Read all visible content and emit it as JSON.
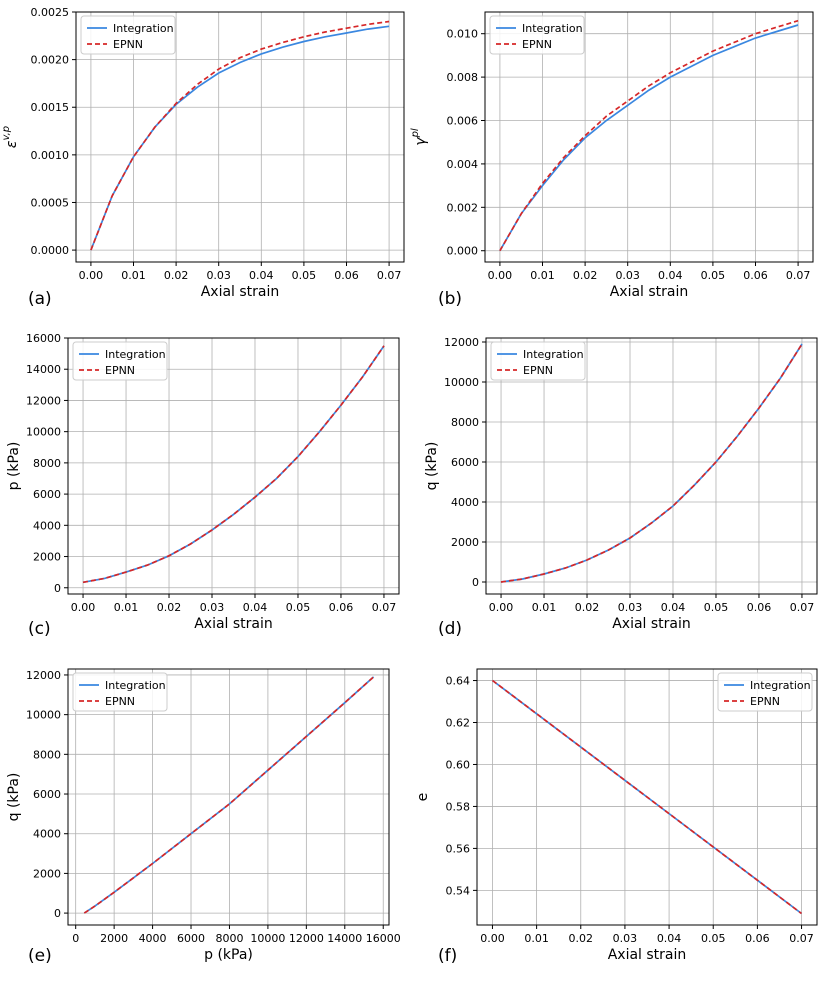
{
  "chart_data": [
    {
      "type": "line",
      "panel_label": "(a)",
      "xlabel": "Axial strain",
      "ylabel_symbol": "ε",
      "ylabel_sup": "v,p",
      "xlim": [
        -0.0035,
        0.0735
      ],
      "ylim": [
        -0.000125,
        0.0025
      ],
      "xticks": [
        0,
        0.01,
        0.02,
        0.03,
        0.04,
        0.05,
        0.06,
        0.07
      ],
      "xtick_labels": [
        "0.00",
        "0.01",
        "0.02",
        "0.03",
        "0.04",
        "0.05",
        "0.06",
        "0.07"
      ],
      "yticks": [
        0,
        0.0005,
        0.001,
        0.0015,
        0.002,
        0.0025
      ],
      "ytick_labels": [
        "0.0000",
        "0.0005",
        "0.0010",
        "0.0015",
        "0.0020",
        "0.0025"
      ],
      "legend_loc": "upper-left",
      "series": [
        {
          "name": "Integration",
          "color": "#3a87e0",
          "style": "solid",
          "x": [
            0,
            0.005,
            0.01,
            0.015,
            0.02,
            0.025,
            0.03,
            0.035,
            0.04,
            0.045,
            0.05,
            0.055,
            0.06,
            0.065,
            0.07
          ],
          "y": [
            0,
            0.00057,
            0.00098,
            0.00129,
            0.00153,
            0.00171,
            0.00186,
            0.00197,
            0.00206,
            0.00213,
            0.00219,
            0.00224,
            0.00228,
            0.00232,
            0.00235
          ]
        },
        {
          "name": "EPNN",
          "color": "#d62728",
          "style": "dashed",
          "x": [
            0,
            0.005,
            0.01,
            0.015,
            0.02,
            0.025,
            0.03,
            0.035,
            0.04,
            0.045,
            0.05,
            0.055,
            0.06,
            0.065,
            0.07
          ],
          "y": [
            0,
            0.00057,
            0.00098,
            0.00129,
            0.00154,
            0.00174,
            0.0019,
            0.00202,
            0.00211,
            0.00218,
            0.00224,
            0.00229,
            0.00233,
            0.00237,
            0.0024
          ]
        }
      ]
    },
    {
      "type": "line",
      "panel_label": "(b)",
      "xlabel": "Axial strain",
      "ylabel_symbol": "γ",
      "ylabel_sup": "pl",
      "xlim": [
        -0.0035,
        0.0735
      ],
      "ylim": [
        -0.00052,
        0.011
      ],
      "xticks": [
        0,
        0.01,
        0.02,
        0.03,
        0.04,
        0.05,
        0.06,
        0.07
      ],
      "xtick_labels": [
        "0.00",
        "0.01",
        "0.02",
        "0.03",
        "0.04",
        "0.05",
        "0.06",
        "0.07"
      ],
      "yticks": [
        0,
        0.002,
        0.004,
        0.006,
        0.008,
        0.01
      ],
      "ytick_labels": [
        "0.000",
        "0.002",
        "0.004",
        "0.006",
        "0.008",
        "0.010"
      ],
      "legend_loc": "upper-left",
      "series": [
        {
          "name": "Integration",
          "color": "#3a87e0",
          "style": "solid",
          "x": [
            0,
            0.005,
            0.01,
            0.015,
            0.02,
            0.025,
            0.03,
            0.035,
            0.04,
            0.045,
            0.05,
            0.055,
            0.06,
            0.065,
            0.07
          ],
          "y": [
            0,
            0.0017,
            0.003,
            0.0042,
            0.0052,
            0.006,
            0.0067,
            0.0074,
            0.008,
            0.0085,
            0.009,
            0.0094,
            0.0098,
            0.0101,
            0.0104
          ]
        },
        {
          "name": "EPNN",
          "color": "#d62728",
          "style": "dashed",
          "x": [
            0,
            0.005,
            0.01,
            0.015,
            0.02,
            0.025,
            0.03,
            0.035,
            0.04,
            0.045,
            0.05,
            0.055,
            0.06,
            0.065,
            0.07
          ],
          "y": [
            0,
            0.0017,
            0.0031,
            0.0043,
            0.0053,
            0.0062,
            0.0069,
            0.0076,
            0.0082,
            0.0087,
            0.0092,
            0.0096,
            0.01,
            0.0103,
            0.0106
          ]
        }
      ]
    },
    {
      "type": "line",
      "panel_label": "(c)",
      "xlabel": "Axial strain",
      "ylabel": "p (kPa)",
      "xlim": [
        -0.0035,
        0.0735
      ],
      "ylim": [
        -400,
        16000
      ],
      "xticks": [
        0,
        0.01,
        0.02,
        0.03,
        0.04,
        0.05,
        0.06,
        0.07
      ],
      "xtick_labels": [
        "0.00",
        "0.01",
        "0.02",
        "0.03",
        "0.04",
        "0.05",
        "0.06",
        "0.07"
      ],
      "yticks": [
        0,
        2000,
        4000,
        6000,
        8000,
        10000,
        12000,
        14000,
        16000
      ],
      "ytick_labels": [
        "0",
        "2000",
        "4000",
        "6000",
        "8000",
        "10000",
        "12000",
        "14000",
        "16000"
      ],
      "legend_loc": "upper-left",
      "series": [
        {
          "name": "Integration",
          "color": "#3a87e0",
          "style": "solid",
          "x": [
            0,
            0.005,
            0.01,
            0.015,
            0.02,
            0.025,
            0.03,
            0.035,
            0.04,
            0.045,
            0.05,
            0.055,
            0.06,
            0.065,
            0.07
          ],
          "y": [
            350,
            600,
            1000,
            1450,
            2050,
            2800,
            3700,
            4700,
            5800,
            7000,
            8400,
            10000,
            11700,
            13500,
            15500
          ]
        },
        {
          "name": "EPNN",
          "color": "#d62728",
          "style": "dashed",
          "x": [
            0,
            0.005,
            0.01,
            0.015,
            0.02,
            0.025,
            0.03,
            0.035,
            0.04,
            0.045,
            0.05,
            0.055,
            0.06,
            0.065,
            0.07
          ],
          "y": [
            350,
            600,
            1000,
            1450,
            2050,
            2800,
            3700,
            4700,
            5800,
            7000,
            8400,
            10000,
            11700,
            13500,
            15500
          ]
        }
      ]
    },
    {
      "type": "line",
      "panel_label": "(d)",
      "xlabel": "Axial strain",
      "ylabel": "q (kPa)",
      "xlim": [
        -0.0035,
        0.0735
      ],
      "ylim": [
        -600,
        12200
      ],
      "xticks": [
        0,
        0.01,
        0.02,
        0.03,
        0.04,
        0.05,
        0.06,
        0.07
      ],
      "xtick_labels": [
        "0.00",
        "0.01",
        "0.02",
        "0.03",
        "0.04",
        "0.05",
        "0.06",
        "0.07"
      ],
      "yticks": [
        0,
        2000,
        4000,
        6000,
        8000,
        10000,
        12000
      ],
      "ytick_labels": [
        "0",
        "2000",
        "4000",
        "6000",
        "8000",
        "10000",
        "12000"
      ],
      "legend_loc": "upper-left",
      "series": [
        {
          "name": "Integration",
          "color": "#3a87e0",
          "style": "solid",
          "x": [
            0,
            0.005,
            0.01,
            0.015,
            0.02,
            0.025,
            0.03,
            0.035,
            0.04,
            0.045,
            0.05,
            0.055,
            0.06,
            0.065,
            0.07
          ],
          "y": [
            0,
            150,
            400,
            700,
            1100,
            1600,
            2200,
            2950,
            3800,
            4850,
            6000,
            7300,
            8700,
            10200,
            11900
          ]
        },
        {
          "name": "EPNN",
          "color": "#d62728",
          "style": "dashed",
          "x": [
            0,
            0.005,
            0.01,
            0.015,
            0.02,
            0.025,
            0.03,
            0.035,
            0.04,
            0.045,
            0.05,
            0.055,
            0.06,
            0.065,
            0.07
          ],
          "y": [
            0,
            150,
            400,
            700,
            1100,
            1600,
            2200,
            2950,
            3800,
            4850,
            6000,
            7300,
            8700,
            10200,
            11900
          ]
        }
      ]
    },
    {
      "type": "line",
      "panel_label": "(e)",
      "xlabel": "p (kPa)",
      "ylabel": "q (kPa)",
      "xlim": [
        -400,
        16300
      ],
      "ylim": [
        -600,
        12300
      ],
      "xticks": [
        0,
        2000,
        4000,
        6000,
        8000,
        10000,
        12000,
        14000,
        16000
      ],
      "xtick_labels": [
        "0",
        "2000",
        "4000",
        "6000",
        "8000",
        "10000",
        "12000",
        "14000",
        "16000"
      ],
      "yticks": [
        0,
        2000,
        4000,
        6000,
        8000,
        10000,
        12000
      ],
      "ytick_labels": [
        "0",
        "2000",
        "4000",
        "6000",
        "8000",
        "10000",
        "12000"
      ],
      "legend_loc": "upper-left",
      "series": [
        {
          "name": "Integration",
          "color": "#3a87e0",
          "style": "solid",
          "x": [
            450,
            1000,
            2000,
            4000,
            6000,
            8000,
            10000,
            12000,
            14000,
            15500
          ],
          "y": [
            0,
            350,
            1050,
            2500,
            4000,
            5500,
            7200,
            8900,
            10600,
            11900
          ]
        },
        {
          "name": "EPNN",
          "color": "#d62728",
          "style": "dashed",
          "x": [
            450,
            1000,
            2000,
            4000,
            6000,
            8000,
            10000,
            12000,
            14000,
            15500
          ],
          "y": [
            0,
            350,
            1050,
            2500,
            4000,
            5500,
            7200,
            8900,
            10600,
            11900
          ]
        }
      ]
    },
    {
      "type": "line",
      "panel_label": "(f)",
      "xlabel": "Axial strain",
      "ylabel": "e",
      "xlim": [
        -0.0035,
        0.0735
      ],
      "ylim": [
        0.5235,
        0.6455
      ],
      "xticks": [
        0,
        0.01,
        0.02,
        0.03,
        0.04,
        0.05,
        0.06,
        0.07
      ],
      "xtick_labels": [
        "0.00",
        "0.01",
        "0.02",
        "0.03",
        "0.04",
        "0.05",
        "0.06",
        "0.07"
      ],
      "yticks": [
        0.54,
        0.56,
        0.58,
        0.6,
        0.62,
        0.64
      ],
      "ytick_labels": [
        "0.54",
        "0.56",
        "0.58",
        "0.60",
        "0.62",
        "0.64"
      ],
      "legend_loc": "upper-right",
      "series": [
        {
          "name": "Integration",
          "color": "#3a87e0",
          "style": "solid",
          "x": [
            0,
            0.035,
            0.07
          ],
          "y": [
            0.64,
            0.5845,
            0.529
          ]
        },
        {
          "name": "EPNN",
          "color": "#d62728",
          "style": "dashed",
          "x": [
            0,
            0.035,
            0.07
          ],
          "y": [
            0.64,
            0.5845,
            0.529
          ]
        }
      ]
    }
  ]
}
